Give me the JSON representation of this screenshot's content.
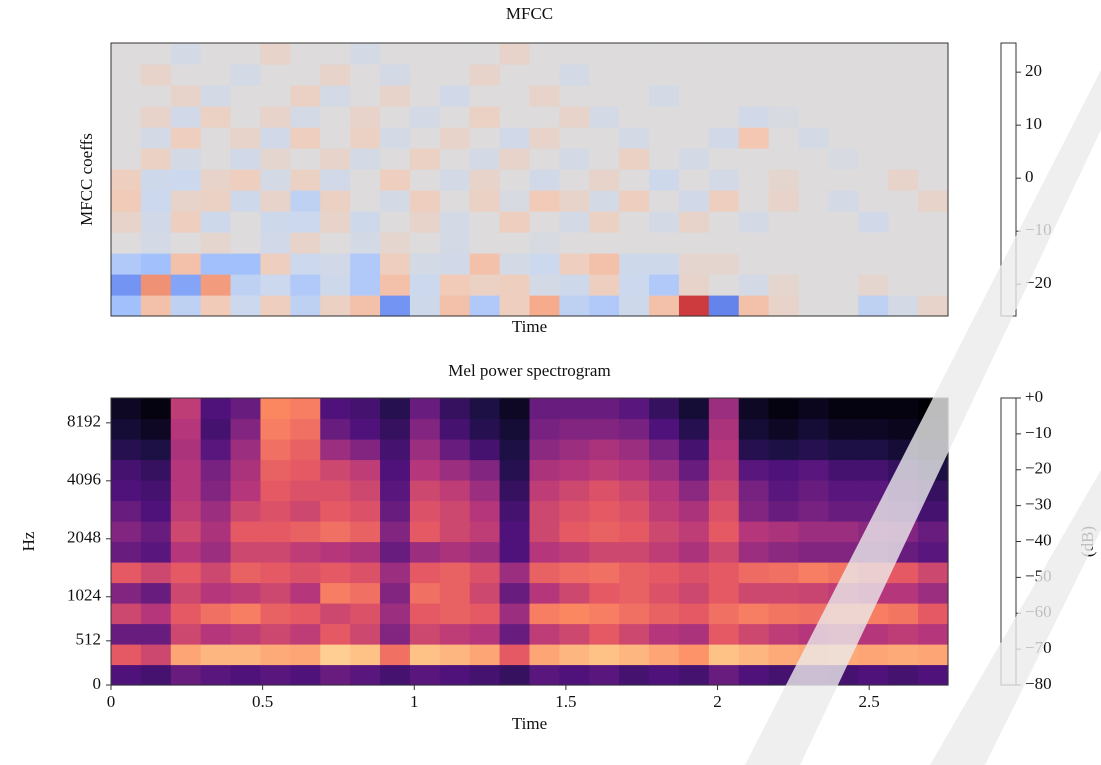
{
  "chart_data": [
    {
      "type": "heatmap",
      "title": "MFCC",
      "xlabel": "Time",
      "ylabel": "MFCC coeffs",
      "colormap": "coolwarm",
      "clim": [
        -26,
        25.5
      ],
      "cticks": [
        20,
        10,
        0,
        {
          "value": -10,
          "label": "−10"
        },
        {
          "value": -20,
          "label": "−20"
        }
      ],
      "values": [
        [
          -12,
          8,
          -8,
          6,
          -6,
          5,
          -8,
          4,
          8,
          -18,
          -5,
          8,
          -10,
          5,
          12,
          -8,
          -10,
          -5,
          8,
          22,
          -20,
          8,
          3,
          0,
          0,
          -8,
          -3,
          3
        ],
        [
          -18,
          15,
          -16,
          14,
          -8,
          -6,
          -10,
          -5,
          -10,
          8,
          -6,
          6,
          4,
          5,
          -3,
          -5,
          5,
          -6,
          -10,
          3,
          0,
          -3,
          2,
          0,
          0,
          2,
          0,
          0
        ],
        [
          -10,
          -12,
          8,
          -12,
          -12,
          5,
          -6,
          -4,
          -10,
          5,
          -3,
          -4,
          8,
          -3,
          -6,
          5,
          8,
          -5,
          -5,
          2,
          2,
          0,
          0,
          0,
          0,
          0,
          0,
          0
        ],
        [
          0,
          -3,
          0,
          2,
          0,
          -4,
          3,
          0,
          -3,
          2,
          0,
          -3,
          0,
          0,
          -2,
          0,
          0,
          0,
          0,
          0,
          0,
          0,
          0,
          0,
          0,
          0,
          0,
          0
        ],
        [
          3,
          -4,
          5,
          -5,
          0,
          -5,
          -6,
          3,
          -5,
          0,
          3,
          -3,
          0,
          5,
          0,
          -3,
          4,
          0,
          -3,
          3,
          0,
          -3,
          0,
          0,
          0,
          -4,
          0,
          0
        ],
        [
          6,
          -6,
          3,
          4,
          -5,
          3,
          -8,
          4,
          0,
          -3,
          5,
          0,
          4,
          -2,
          6,
          3,
          -3,
          5,
          0,
          -4,
          5,
          0,
          3,
          0,
          -3,
          0,
          0,
          3
        ],
        [
          5,
          -5,
          -6,
          3,
          5,
          -3,
          4,
          -4,
          0,
          5,
          0,
          -3,
          3,
          0,
          -4,
          0,
          3,
          0,
          -5,
          0,
          -3,
          0,
          2,
          0,
          0,
          0,
          3,
          0
        ],
        [
          0,
          4,
          -3,
          0,
          -4,
          2,
          0,
          3,
          -3,
          0,
          4,
          0,
          -3,
          3,
          0,
          -3,
          0,
          4,
          0,
          -3,
          0,
          0,
          0,
          0,
          -2,
          0,
          0,
          0
        ],
        [
          0,
          -3,
          5,
          0,
          3,
          -4,
          5,
          0,
          4,
          -3,
          0,
          3,
          0,
          -4,
          3,
          0,
          0,
          -3,
          0,
          0,
          -4,
          7,
          0,
          -3,
          0,
          0,
          0,
          0
        ],
        [
          0,
          3,
          -4,
          4,
          0,
          3,
          -3,
          0,
          3,
          0,
          -3,
          0,
          4,
          0,
          0,
          3,
          -3,
          0,
          0,
          0,
          0,
          -4,
          -2,
          0,
          0,
          0,
          0,
          0
        ],
        [
          0,
          0,
          3,
          -3,
          0,
          0,
          4,
          -3,
          0,
          3,
          0,
          -4,
          0,
          0,
          3,
          0,
          0,
          0,
          -3,
          0,
          0,
          0,
          0,
          0,
          0,
          0,
          0,
          0
        ],
        [
          0,
          3,
          0,
          0,
          -3,
          0,
          0,
          3,
          0,
          -3,
          0,
          0,
          3,
          0,
          0,
          -3,
          0,
          0,
          0,
          0,
          0,
          0,
          0,
          0,
          0,
          0,
          0,
          0
        ],
        [
          0,
          0,
          -3,
          0,
          0,
          3,
          0,
          0,
          -3,
          0,
          0,
          0,
          0,
          3,
          0,
          0,
          0,
          0,
          0,
          0,
          0,
          0,
          0,
          0,
          0,
          0,
          0,
          0
        ]
      ]
    },
    {
      "type": "heatmap",
      "title": "Mel power spectrogram",
      "xlabel": "Time",
      "ylabel": "Hz",
      "colormap": "magma",
      "yscale": "mel",
      "xlim": [
        0,
        2.76
      ],
      "xticks": [
        0,
        0.5,
        1,
        1.5,
        2,
        2.5
      ],
      "ylim": [
        0,
        11025
      ],
      "yticks": [
        0,
        512,
        1024,
        2048,
        4096,
        8192
      ],
      "clim": [
        -80,
        0
      ],
      "colorbar_label": "(dB)",
      "cticks": [
        {
          "value": 0,
          "label": "+0"
        },
        {
          "value": -10,
          "label": "−10"
        },
        {
          "value": -20,
          "label": "−20"
        },
        {
          "value": -30,
          "label": "−30"
        },
        {
          "value": -40,
          "label": "−40"
        },
        {
          "value": -50,
          "label": "−50"
        },
        {
          "value": -60,
          "label": "−60"
        },
        {
          "value": -70,
          "label": "−70"
        },
        {
          "value": -80,
          "label": "−80"
        }
      ],
      "values": [
        [
          -60,
          -62,
          -55,
          -58,
          -60,
          -58,
          -60,
          -55,
          -58,
          -62,
          -58,
          -60,
          -62,
          -65,
          -58,
          -60,
          -58,
          -62,
          -60,
          -62,
          -55,
          -60,
          -62,
          -60,
          -62,
          -60,
          -62,
          -60
        ],
        [
          -30,
          -35,
          -15,
          -12,
          -12,
          -14,
          -15,
          -8,
          -10,
          -25,
          -10,
          -12,
          -15,
          -30,
          -15,
          -12,
          -10,
          -12,
          -15,
          -18,
          -10,
          -12,
          -14,
          -15,
          -14,
          -15,
          -14,
          -15
        ],
        [
          -55,
          -55,
          -35,
          -40,
          -38,
          -35,
          -38,
          -30,
          -35,
          -50,
          -35,
          -38,
          -40,
          -55,
          -38,
          -35,
          -30,
          -35,
          -40,
          -42,
          -30,
          -35,
          -38,
          -40,
          -38,
          -40,
          -38,
          -40
        ],
        [
          -35,
          -40,
          -30,
          -25,
          -22,
          -28,
          -30,
          -35,
          -32,
          -45,
          -30,
          -28,
          -30,
          -45,
          -22,
          -20,
          -22,
          -25,
          -28,
          -30,
          -25,
          -22,
          -24,
          -25,
          -22,
          -22,
          -24,
          -30
        ],
        [
          -50,
          -55,
          -35,
          -40,
          -38,
          -35,
          -40,
          -22,
          -25,
          -50,
          -25,
          -28,
          -35,
          -55,
          -40,
          -35,
          -30,
          -28,
          -32,
          -35,
          -30,
          -35,
          -35,
          -36,
          -38,
          -40,
          -40,
          -45
        ],
        [
          -30,
          -35,
          -30,
          -35,
          -28,
          -30,
          -32,
          -30,
          -32,
          -45,
          -30,
          -28,
          -32,
          -45,
          -28,
          -26,
          -25,
          -28,
          -30,
          -32,
          -30,
          -26,
          -25,
          -22,
          -24,
          -28,
          -30,
          -35
        ],
        [
          -55,
          -58,
          -40,
          -45,
          -35,
          -35,
          -38,
          -40,
          -42,
          -55,
          -45,
          -42,
          -45,
          -60,
          -40,
          -38,
          -35,
          -35,
          -38,
          -42,
          -35,
          -45,
          -48,
          -50,
          -50,
          -52,
          -55,
          -58
        ],
        [
          -50,
          -55,
          -35,
          -42,
          -30,
          -30,
          -28,
          -25,
          -28,
          -50,
          -30,
          -35,
          -38,
          -60,
          -35,
          -30,
          -28,
          -30,
          -35,
          -38,
          -30,
          -40,
          -42,
          -45,
          -45,
          -48,
          -50,
          -55
        ],
        [
          -55,
          -60,
          -38,
          -45,
          -35,
          -32,
          -35,
          -30,
          -32,
          -55,
          -32,
          -35,
          -40,
          -62,
          -35,
          -32,
          -30,
          -32,
          -38,
          -42,
          -32,
          -50,
          -55,
          -52,
          -55,
          -55,
          -58,
          -62
        ],
        [
          -60,
          -62,
          -40,
          -50,
          -40,
          -30,
          -32,
          -32,
          -35,
          -58,
          -35,
          -38,
          -45,
          -65,
          -38,
          -35,
          -32,
          -35,
          -40,
          -48,
          -35,
          -52,
          -58,
          -55,
          -58,
          -58,
          -62,
          -65
        ],
        [
          -62,
          -65,
          -40,
          -52,
          -42,
          -28,
          -30,
          -35,
          -38,
          -60,
          -40,
          -45,
          -50,
          -68,
          -42,
          -40,
          -38,
          -40,
          -45,
          -55,
          -38,
          -58,
          -60,
          -58,
          -62,
          -62,
          -65,
          -70
        ],
        [
          -68,
          -70,
          -42,
          -58,
          -45,
          -25,
          -28,
          -45,
          -50,
          -62,
          -45,
          -55,
          -62,
          -70,
          -48,
          -45,
          -42,
          -45,
          -52,
          -62,
          -40,
          -68,
          -70,
          -68,
          -70,
          -70,
          -72,
          -75
        ],
        [
          -72,
          -75,
          -40,
          -62,
          -50,
          -22,
          -25,
          -55,
          -60,
          -65,
          -50,
          -62,
          -68,
          -72,
          -52,
          -50,
          -50,
          -52,
          -60,
          -68,
          -42,
          -72,
          -75,
          -72,
          -75,
          -75,
          -76,
          -78
        ],
        [
          -75,
          -78,
          -38,
          -60,
          -55,
          -20,
          -22,
          -60,
          -62,
          -68,
          -55,
          -65,
          -70,
          -75,
          -55,
          -55,
          -55,
          -58,
          -65,
          -72,
          -45,
          -75,
          -78,
          -76,
          -78,
          -78,
          -78,
          -80
        ]
      ]
    }
  ]
}
